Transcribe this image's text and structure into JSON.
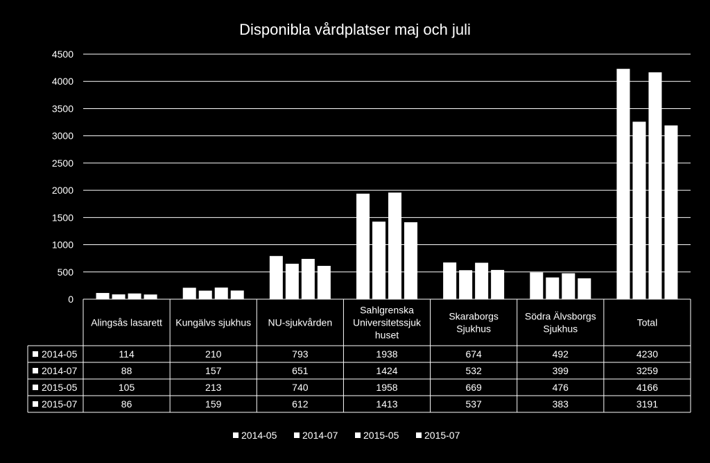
{
  "chart_data": {
    "type": "bar",
    "title": "Disponibla vårdplatser maj och juli",
    "xlabel": "",
    "ylabel": "",
    "ylim": [
      0,
      4500
    ],
    "yticks": [
      0,
      500,
      1000,
      1500,
      2000,
      2500,
      3000,
      3500,
      4000,
      4500
    ],
    "grid": true,
    "legend_position": "bottom",
    "data_table": true,
    "categories": [
      "Alingsås lasarett",
      "Kungälvs sjukhus",
      "NU-sjukvården",
      "Sahlgrenska Universitetssjukhuset",
      "Skaraborgs Sjukhus",
      "Södra Älvsborgs Sjukhus",
      "Total"
    ],
    "category_label_lines": [
      [
        "Alingsås lasarett"
      ],
      [
        "Kungälvs sjukhus"
      ],
      [
        "NU-sjukvården"
      ],
      [
        "Sahlgrenska",
        "Universitetssjuk",
        "huset"
      ],
      [
        "Skaraborgs",
        "Sjukhus"
      ],
      [
        "Södra Älvsborgs",
        "Sjukhus"
      ],
      [
        "Total"
      ]
    ],
    "series": [
      {
        "name": "2014-05",
        "values": [
          114,
          210,
          793,
          1938,
          674,
          492,
          4230
        ]
      },
      {
        "name": "2014-07",
        "values": [
          88,
          157,
          651,
          1424,
          532,
          399,
          3259
        ]
      },
      {
        "name": "2015-05",
        "values": [
          105,
          213,
          740,
          1958,
          669,
          476,
          4166
        ]
      },
      {
        "name": "2015-07",
        "values": [
          86,
          159,
          612,
          1413,
          537,
          383,
          3191
        ]
      }
    ],
    "colors": {
      "background": "#000000",
      "bar": "#ffffff",
      "text": "#ffffff",
      "grid": "#ffffff"
    }
  }
}
